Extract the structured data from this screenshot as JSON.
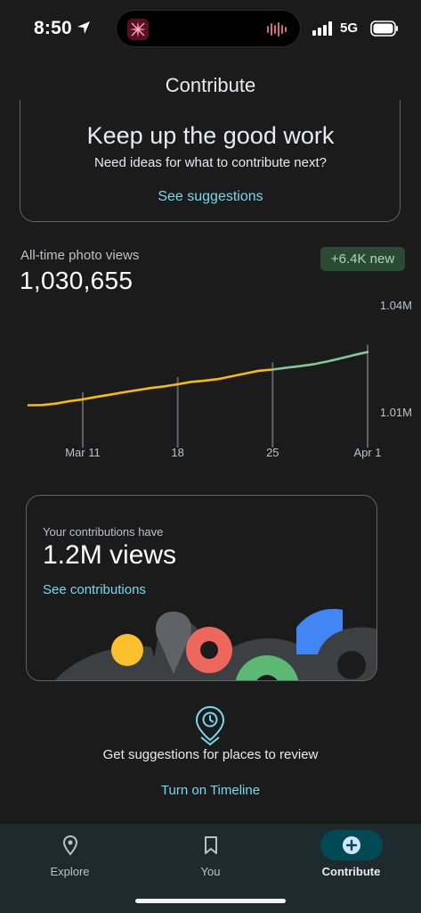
{
  "status": {
    "time": "8:50",
    "network": "5G"
  },
  "header": {
    "title": "Contribute"
  },
  "prompt_card": {
    "title": "Keep up the good work",
    "subtitle": "Need ideas for what to contribute next?",
    "link": "See suggestions"
  },
  "views": {
    "label": "All-time photo views",
    "value": "1,030,655",
    "badge": "+6.4K new"
  },
  "chart_data": {
    "type": "line",
    "x": [
      "Mar 7",
      "Mar 8",
      "Mar 9",
      "Mar 10",
      "Mar 11",
      "Mar 12",
      "Mar 13",
      "Mar 14",
      "Mar 15",
      "Mar 16",
      "Mar 17",
      "Mar 18",
      "Mar 19",
      "Mar 20",
      "Mar 21",
      "Mar 22",
      "Mar 23",
      "Mar 24",
      "Mar 25",
      "Mar 26",
      "Mar 27",
      "Mar 28",
      "Mar 29",
      "Mar 30",
      "Mar 31",
      "Apr 1"
    ],
    "values": [
      1007400,
      1007450,
      1007900,
      1008700,
      1009300,
      1010100,
      1010800,
      1011600,
      1012300,
      1013000,
      1013500,
      1014200,
      1015000,
      1015400,
      1015900,
      1016800,
      1017700,
      1018600,
      1019000,
      1019600,
      1020100,
      1020700,
      1021600,
      1022600,
      1023700,
      1024700
    ],
    "new_from_index": 18,
    "x_ticks": [
      "Mar 11",
      "18",
      "25",
      "Apr 1"
    ],
    "y_ticks": [
      "1.04M",
      "1.01M"
    ],
    "ylim": [
      1000000,
      1040000
    ],
    "colors": {
      "past": "#fbbc04",
      "new": "#81c995"
    }
  },
  "contributions": {
    "label": "Your contributions have",
    "value": "1.2M views",
    "link": "See contributions"
  },
  "timeline": {
    "text": "Get suggestions for places to review",
    "link": "Turn on Timeline"
  },
  "nav": {
    "items": [
      {
        "label": "Explore"
      },
      {
        "label": "You"
      },
      {
        "label": "Contribute"
      }
    ]
  },
  "colors": {
    "accent": "#78d9ec",
    "background": "#1b1b1b"
  }
}
